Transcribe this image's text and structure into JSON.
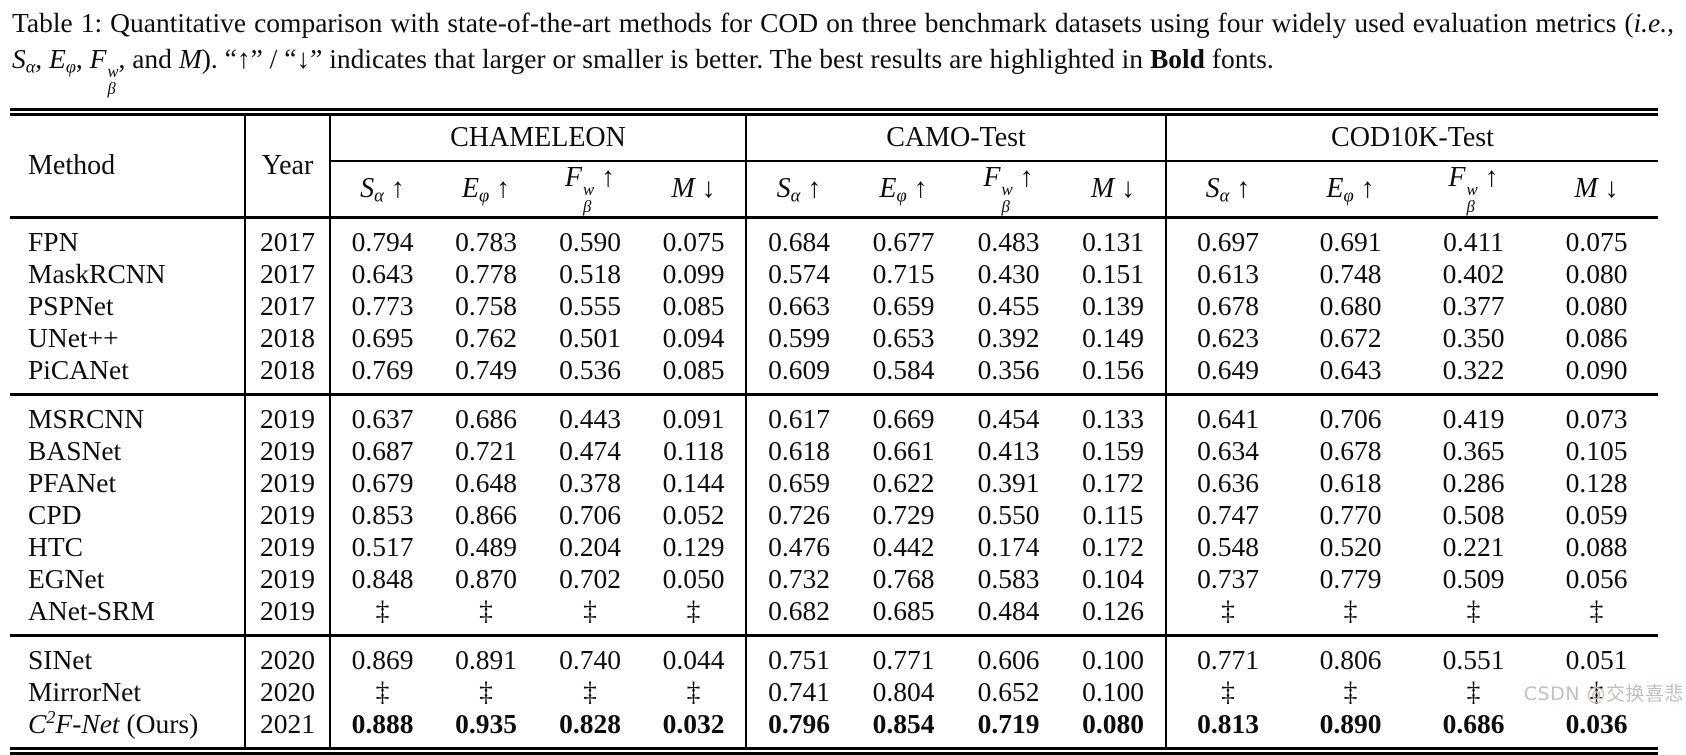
{
  "colors": {
    "text": "#0d0d0d",
    "rule": "#000000",
    "watermark": "#c8bdbd"
  },
  "caption": {
    "segments": [
      {
        "t": "Table 1: Quantitative comparison with state-of-the-art methods for COD on three benchmark datasets using four widely used evaluation metrics ("
      },
      {
        "t": "i.e.",
        "i": true
      },
      {
        "t": ", "
      },
      {
        "t": "S",
        "i": true
      },
      {
        "t": "α",
        "sub": true,
        "i": true
      },
      {
        "t": ", "
      },
      {
        "t": "E",
        "i": true
      },
      {
        "t": "φ",
        "sub": true,
        "i": true
      },
      {
        "t": ", "
      },
      {
        "t": "F",
        "i": true,
        "stack": {
          "sup": "w",
          "sub": "β"
        }
      },
      {
        "t": ", and "
      },
      {
        "t": "M",
        "i": true
      },
      {
        "t": "). “↑” / “↓” indicates that larger or smaller is better. The best results are highlighted in "
      },
      {
        "t": "Bold",
        "b": true
      },
      {
        "t": " fonts."
      }
    ]
  },
  "watermark": "CSDN @交换喜悲",
  "table": {
    "method_header": "Method",
    "year_header": "Year",
    "groups": [
      "CHAMELEON",
      "CAMO-Test",
      "COD10K-Test"
    ],
    "metrics": [
      [
        {
          "t": "S",
          "i": true
        },
        {
          "t": "α",
          "sub": true,
          "i": true
        },
        {
          "t": " ↑"
        }
      ],
      [
        {
          "t": "E",
          "i": true
        },
        {
          "t": "φ",
          "sub": true,
          "i": true
        },
        {
          "t": " ↑"
        }
      ],
      [
        {
          "t": "F",
          "i": true,
          "stack": {
            "sup": "w",
            "sub": "β"
          }
        },
        {
          "t": " ↑"
        }
      ],
      [
        {
          "t": "M",
          "i": true
        },
        {
          "t": " ↓"
        }
      ]
    ],
    "missing_symbol": "‡",
    "row_groups": [
      {
        "rows": [
          {
            "method": "FPN",
            "year": "2017",
            "values": [
              "0.794",
              "0.783",
              "0.590",
              "0.075",
              "0.684",
              "0.677",
              "0.483",
              "0.131",
              "0.697",
              "0.691",
              "0.411",
              "0.075"
            ]
          },
          {
            "method": "MaskRCNN",
            "year": "2017",
            "values": [
              "0.643",
              "0.778",
              "0.518",
              "0.099",
              "0.574",
              "0.715",
              "0.430",
              "0.151",
              "0.613",
              "0.748",
              "0.402",
              "0.080"
            ]
          },
          {
            "method": "PSPNet",
            "year": "2017",
            "values": [
              "0.773",
              "0.758",
              "0.555",
              "0.085",
              "0.663",
              "0.659",
              "0.455",
              "0.139",
              "0.678",
              "0.680",
              "0.377",
              "0.080"
            ]
          },
          {
            "method": "UNet++",
            "year": "2018",
            "values": [
              "0.695",
              "0.762",
              "0.501",
              "0.094",
              "0.599",
              "0.653",
              "0.392",
              "0.149",
              "0.623",
              "0.672",
              "0.350",
              "0.086"
            ]
          },
          {
            "method": "PiCANet",
            "year": "2018",
            "values": [
              "0.769",
              "0.749",
              "0.536",
              "0.085",
              "0.609",
              "0.584",
              "0.356",
              "0.156",
              "0.649",
              "0.643",
              "0.322",
              "0.090"
            ]
          }
        ]
      },
      {
        "rows": [
          {
            "method": "MSRCNN",
            "year": "2019",
            "values": [
              "0.637",
              "0.686",
              "0.443",
              "0.091",
              "0.617",
              "0.669",
              "0.454",
              "0.133",
              "0.641",
              "0.706",
              "0.419",
              "0.073"
            ]
          },
          {
            "method": "BASNet",
            "year": "2019",
            "values": [
              "0.687",
              "0.721",
              "0.474",
              "0.118",
              "0.618",
              "0.661",
              "0.413",
              "0.159",
              "0.634",
              "0.678",
              "0.365",
              "0.105"
            ]
          },
          {
            "method": "PFANet",
            "year": "2019",
            "values": [
              "0.679",
              "0.648",
              "0.378",
              "0.144",
              "0.659",
              "0.622",
              "0.391",
              "0.172",
              "0.636",
              "0.618",
              "0.286",
              "0.128"
            ]
          },
          {
            "method": "CPD",
            "year": "2019",
            "values": [
              "0.853",
              "0.866",
              "0.706",
              "0.052",
              "0.726",
              "0.729",
              "0.550",
              "0.115",
              "0.747",
              "0.770",
              "0.508",
              "0.059"
            ]
          },
          {
            "method": "HTC",
            "year": "2019",
            "values": [
              "0.517",
              "0.489",
              "0.204",
              "0.129",
              "0.476",
              "0.442",
              "0.174",
              "0.172",
              "0.548",
              "0.520",
              "0.221",
              "0.088"
            ]
          },
          {
            "method": "EGNet",
            "year": "2019",
            "values": [
              "0.848",
              "0.870",
              "0.702",
              "0.050",
              "0.732",
              "0.768",
              "0.583",
              "0.104",
              "0.737",
              "0.779",
              "0.509",
              "0.056"
            ]
          },
          {
            "method": "ANet-SRM",
            "year": "2019",
            "values": [
              "‡",
              "‡",
              "‡",
              "‡",
              "0.682",
              "0.685",
              "0.484",
              "0.126",
              "‡",
              "‡",
              "‡",
              "‡"
            ]
          }
        ]
      },
      {
        "rows": [
          {
            "method": "SINet",
            "year": "2020",
            "values": [
              "0.869",
              "0.891",
              "0.740",
              "0.044",
              "0.751",
              "0.771",
              "0.606",
              "0.100",
              "0.771",
              "0.806",
              "0.551",
              "0.051"
            ]
          },
          {
            "method": "MirrorNet",
            "year": "2020",
            "values": [
              "‡",
              "‡",
              "‡",
              "‡",
              "0.741",
              "0.804",
              "0.652",
              "0.100",
              "‡",
              "‡",
              "‡",
              "‡"
            ]
          },
          {
            "method": [
              {
                "t": "C",
                "i": true
              },
              {
                "t": "2",
                "sup": true,
                "i": true
              },
              {
                "t": "F-Net",
                "i": true
              },
              {
                "t": " (Ours)"
              }
            ],
            "year": "2021",
            "bold": true,
            "values": [
              "0.888",
              "0.935",
              "0.828",
              "0.032",
              "0.796",
              "0.854",
              "0.719",
              "0.080",
              "0.813",
              "0.890",
              "0.686",
              "0.036"
            ]
          }
        ]
      }
    ]
  }
}
